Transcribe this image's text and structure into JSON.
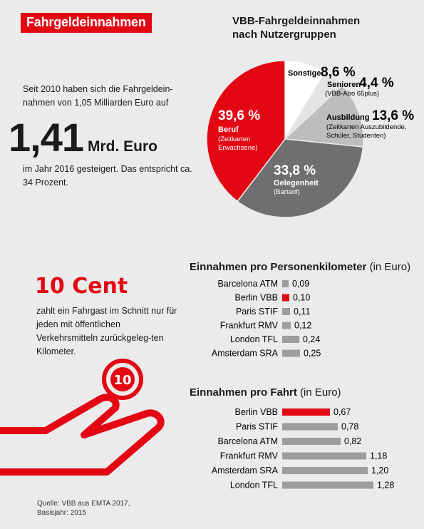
{
  "badge": "Fahrgeldeinnahmen",
  "intro": {
    "text1": "Seit 2010 haben sich die Fahrgeldein-nahmen von 1,05 Milliarden Euro auf",
    "big_value": "1,41",
    "big_unit": "Mrd. Euro",
    "text2": "im Jahr 2016 gesteigert. Das entspricht ca. 34 Prozent."
  },
  "cent": {
    "headline": "10 Cent",
    "text": "zahlt ein Fahrgast im Schnitt nur für jeden mit öffentlichen Verkehrsmitteln zurückgeleg-ten Kilometer.",
    "coin_label": "10"
  },
  "source": {
    "line1": "Quelle: VBB aus EMTA 2017,",
    "line2": "Basisjahr: 2015"
  },
  "colors": {
    "accent": "#e30613",
    "bar": "#9d9d9d",
    "dark_grey": "#6f6f6f",
    "light_grey": "#bdbdbd",
    "white": "#ffffff"
  },
  "chart_data": [
    {
      "type": "pie",
      "title_line1": "VBB-Fahrgeldeinnahmen",
      "title_line2": "nach Nutzergruppen",
      "slices": [
        {
          "name": "Sonstige",
          "value": 8.6,
          "label": "8,6 %",
          "sub": "",
          "color": "#ffffff"
        },
        {
          "name": "Senioren",
          "value": 4.4,
          "label": "4,4 %",
          "sub": "(VBB-Abo 65plus)",
          "color": "#e3e3e3"
        },
        {
          "name": "Ausbildung",
          "value": 13.6,
          "label": "13,6 %",
          "sub1": "(Zeitkarten Auszubildende,",
          "sub2": "Schüler, Studenten)",
          "color": "#bdbdbd"
        },
        {
          "name": "Gelegenheit",
          "value": 33.8,
          "label": "33,8 %",
          "sub": "(Bartarif)",
          "color": "#6f6f6f"
        },
        {
          "name": "Beruf",
          "value": 39.6,
          "label": "39,6 %",
          "sub1": "(Zeitkarten",
          "sub2": "Erwachsene)",
          "color": "#e30613"
        }
      ]
    },
    {
      "type": "bar",
      "orientation": "horizontal",
      "title": "Einnahmen pro Personenkilometer",
      "title_unit": "(in Euro)",
      "categories": [
        "Barcelona ATM",
        "Berlin VBB",
        "Paris STIF",
        "Frankfurt RMV",
        "London TFL",
        "Amsterdam SRA"
      ],
      "values": [
        0.09,
        0.1,
        0.11,
        0.12,
        0.24,
        0.25
      ],
      "labels": [
        "0,09",
        "0,10",
        "0,11",
        "0,12",
        "0,24",
        "0,25"
      ],
      "highlight": "Berlin VBB"
    },
    {
      "type": "bar",
      "orientation": "horizontal",
      "title": "Einnahmen pro Fahrt",
      "title_unit": "(in Euro)",
      "categories": [
        "Berlin VBB",
        "Paris STIF",
        "Barcelona ATM",
        "Frankfurt RMV",
        "Amsterdam SRA",
        "London TFL"
      ],
      "values": [
        0.67,
        0.78,
        0.82,
        1.18,
        1.2,
        1.28
      ],
      "labels": [
        "0,67",
        "0,78",
        "0,82",
        "1,18",
        "1,20",
        "1,28"
      ],
      "highlight": "Berlin VBB"
    }
  ]
}
